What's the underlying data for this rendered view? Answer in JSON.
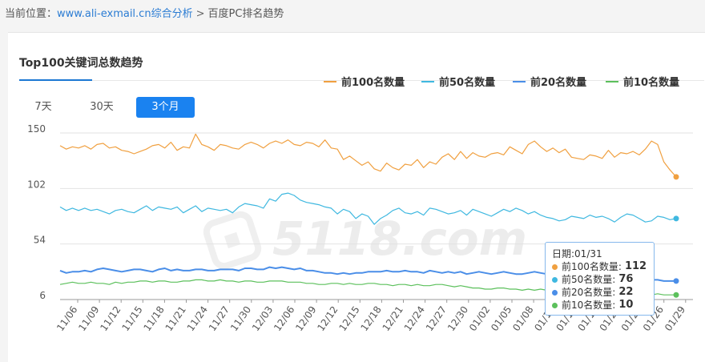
{
  "breadcrumb": {
    "prefix": "当前位置：",
    "link": "www.ali-exmail.cn综合分析",
    "separator": ">",
    "current": "百度PC排名趋势"
  },
  "card": {
    "title": "Top100关键词总数趋势",
    "range_buttons": [
      "7天",
      "30天",
      "3个月"
    ],
    "active_range": "3个月"
  },
  "watermark": "5118.com",
  "tooltip": {
    "date_label": "日期:01/31",
    "rows": [
      {
        "label": "前100名数量:",
        "value": "112",
        "color": "#f0a040"
      },
      {
        "label": "前50名数量:",
        "value": "76",
        "color": "#3fb8e0"
      },
      {
        "label": "前20名数量:",
        "value": "22",
        "color": "#4a8ee8"
      },
      {
        "label": "前10名数量:",
        "value": "10",
        "color": "#5cc05c"
      }
    ]
  },
  "chart_data": {
    "type": "line",
    "ylim": [
      6,
      150
    ],
    "y_ticks": [
      "150",
      "102",
      "54",
      "6"
    ],
    "x_tick_labels": [
      "11/06",
      "11/09",
      "11/12",
      "11/15",
      "11/18",
      "11/21",
      "11/24",
      "11/27",
      "11/30",
      "12/03",
      "12/06",
      "12/09",
      "12/12",
      "12/15",
      "12/18",
      "12/21",
      "12/24",
      "12/27",
      "12/30",
      "01/02",
      "01/05",
      "01/08",
      "01/11",
      "01/14",
      "01/17",
      "01/20",
      "01/23",
      "01/26",
      "01/29"
    ],
    "legend_position": "top-right",
    "grid": "horizontal",
    "series": [
      {
        "name": "前100名数量",
        "color": "#f0a040",
        "values": [
          139,
          136,
          138,
          137,
          139,
          136,
          140,
          141,
          137,
          138,
          135,
          134,
          132,
          134,
          136,
          139,
          140,
          137,
          142,
          135,
          138,
          137,
          149,
          140,
          138,
          135,
          140,
          139,
          137,
          136,
          140,
          142,
          140,
          137,
          141,
          143,
          141,
          144,
          140,
          139,
          142,
          141,
          138,
          144,
          137,
          136,
          127,
          130,
          126,
          122,
          125,
          119,
          117,
          124,
          120,
          118,
          123,
          122,
          127,
          120,
          125,
          123,
          129,
          132,
          127,
          134,
          128,
          133,
          130,
          129,
          132,
          133,
          131,
          138,
          135,
          132,
          140,
          143,
          138,
          134,
          137,
          133,
          136,
          129,
          128,
          127,
          131,
          130,
          128,
          135,
          129,
          133,
          132,
          134,
          131,
          136,
          143,
          140,
          125,
          118,
          112
        ]
      },
      {
        "name": "前50名数量",
        "color": "#3fb8e0",
        "values": [
          86,
          83,
          85,
          83,
          85,
          83,
          84,
          82,
          80,
          83,
          84,
          82,
          81,
          84,
          87,
          83,
          86,
          85,
          84,
          86,
          81,
          84,
          87,
          82,
          85,
          84,
          83,
          84,
          81,
          86,
          89,
          88,
          87,
          85,
          93,
          91,
          97,
          98,
          96,
          92,
          90,
          89,
          88,
          86,
          85,
          80,
          84,
          82,
          76,
          80,
          78,
          71,
          76,
          79,
          83,
          85,
          81,
          80,
          82,
          79,
          85,
          84,
          82,
          80,
          81,
          83,
          79,
          84,
          82,
          80,
          78,
          81,
          84,
          82,
          85,
          83,
          80,
          82,
          79,
          77,
          76,
          74,
          75,
          78,
          77,
          76,
          79,
          77,
          78,
          76,
          73,
          77,
          80,
          79,
          76,
          73,
          74,
          78,
          77,
          75,
          76
        ]
      },
      {
        "name": "前20名数量",
        "color": "#4a8ee8",
        "values": [
          31,
          29,
          30,
          30,
          31,
          30,
          32,
          33,
          32,
          31,
          30,
          31,
          32,
          32,
          31,
          30,
          32,
          33,
          31,
          32,
          31,
          31,
          32,
          32,
          31,
          31,
          32,
          32,
          32,
          31,
          33,
          33,
          32,
          32,
          34,
          33,
          34,
          33,
          32,
          33,
          31,
          31,
          30,
          29,
          29,
          28,
          29,
          28,
          29,
          29,
          30,
          30,
          30,
          31,
          30,
          30,
          31,
          30,
          30,
          29,
          31,
          30,
          29,
          30,
          29,
          30,
          28,
          29,
          30,
          29,
          28,
          29,
          30,
          29,
          28,
          28,
          29,
          30,
          29,
          28,
          27,
          27,
          28,
          27,
          26,
          25,
          25,
          26,
          25,
          24,
          24,
          24,
          25,
          24,
          24,
          23,
          23,
          23,
          22,
          22,
          22
        ]
      },
      {
        "name": "前10名数量",
        "color": "#5cc05c",
        "values": [
          19,
          20,
          21,
          20,
          20,
          21,
          20,
          20,
          19,
          21,
          20,
          21,
          21,
          22,
          22,
          21,
          22,
          22,
          21,
          21,
          22,
          22,
          23,
          23,
          22,
          22,
          23,
          22,
          22,
          21,
          22,
          22,
          21,
          21,
          22,
          22,
          22,
          21,
          21,
          21,
          20,
          20,
          19,
          19,
          20,
          20,
          19,
          20,
          19,
          19,
          20,
          20,
          19,
          19,
          18,
          19,
          19,
          18,
          19,
          18,
          18,
          19,
          19,
          18,
          17,
          18,
          17,
          16,
          16,
          15,
          15,
          16,
          16,
          15,
          15,
          14,
          15,
          14,
          15,
          14,
          16,
          15,
          15,
          14,
          14,
          13,
          12,
          13,
          12,
          12,
          11,
          12,
          11,
          11,
          10,
          11,
          10,
          11,
          10,
          10,
          10
        ]
      }
    ]
  }
}
